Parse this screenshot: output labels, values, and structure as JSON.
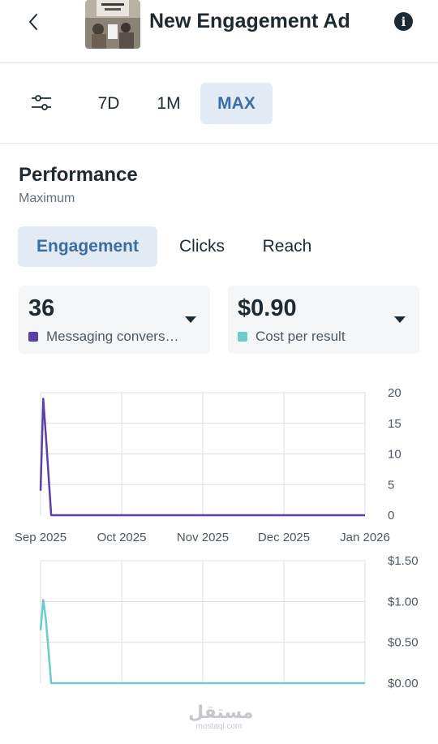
{
  "header": {
    "title": "New Engagement Ad",
    "back_icon": "chevron-left-icon",
    "info_icon": "info-icon",
    "info_glyph": "i"
  },
  "range": {
    "filter_icon": "sliders-icon",
    "options": [
      "7D",
      "1M",
      "MAX"
    ],
    "selected": "MAX"
  },
  "performance": {
    "title": "Performance",
    "subtitle": "Maximum",
    "tabs": [
      "Engagement",
      "Clicks",
      "Reach"
    ],
    "selected_tab": "Engagement"
  },
  "metrics": [
    {
      "value": "36",
      "label": "Messaging convers…",
      "color": "#5b3fa6"
    },
    {
      "value": "$0.90",
      "label": "Cost per result",
      "color": "#6ccbcb"
    }
  ],
  "colors": {
    "accent": "#3a6da8",
    "accent_bg": "#e2ebf4",
    "series_purple": "#5b3fa6",
    "series_teal": "#6ccbcb"
  },
  "chart_data": [
    {
      "type": "line",
      "series": [
        {
          "values": [
            4,
            19,
            13,
            0,
            0,
            0,
            0,
            0,
            0
          ]
        }
      ],
      "x": [
        "2025-09-01",
        "2025-09-02",
        "2025-09-03",
        "2025-09-05",
        "2025-10-01",
        "2025-11-01",
        "2025-12-01",
        "2025-12-31",
        "2026-01-01"
      ],
      "xticks": [
        "Sep 2025",
        "Oct 2025",
        "Nov 2025",
        "Dec 2025",
        "Jan 2026"
      ],
      "yticks": [
        "20",
        "15",
        "10",
        "5",
        "0"
      ],
      "ylim": [
        0,
        20
      ],
      "grid": true
    },
    {
      "type": "line",
      "series": [
        {
          "values": [
            0.65,
            1.02,
            0.78,
            0,
            0,
            0,
            0,
            0,
            0
          ]
        }
      ],
      "x": [
        "2025-09-01",
        "2025-09-02",
        "2025-09-03",
        "2025-09-05",
        "2025-10-01",
        "2025-11-01",
        "2025-12-01",
        "2025-12-31",
        "2026-01-01"
      ],
      "yticks": [
        "$1.50",
        "$1.00",
        "$0.50",
        "$0.00"
      ],
      "ylim": [
        0,
        1.5
      ],
      "grid": true
    }
  ],
  "watermark": {
    "main": "مستقل",
    "sub": "mostaql.com"
  }
}
